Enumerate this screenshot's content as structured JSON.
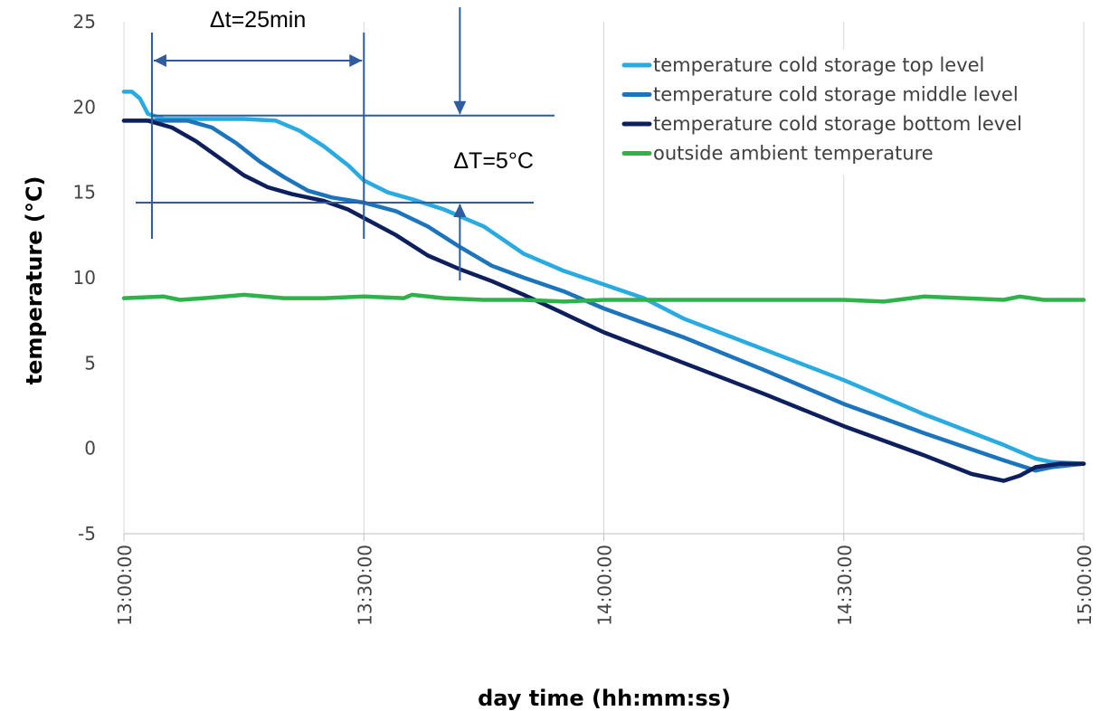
{
  "chart_data": {
    "type": "line",
    "title": "",
    "xlabel": "day time (hh:mm:ss)",
    "ylabel": "temperature (°C)",
    "xlim": [
      "13:00:00",
      "15:00:00"
    ],
    "ylim": [
      -5,
      25
    ],
    "x_ticks": [
      "13:00:00",
      "13:30:00",
      "14:00:00",
      "14:30:00",
      "15:00:00"
    ],
    "y_ticks": [
      -5,
      0,
      5,
      10,
      15,
      20,
      25
    ],
    "grid": "vertical",
    "legend_position": "top-right",
    "series": [
      {
        "name": "temperature cold storage top level",
        "color": "#29abe2",
        "points": [
          [
            "13:00:00",
            20.9
          ],
          [
            "13:01:00",
            20.9
          ],
          [
            "13:02:00",
            20.5
          ],
          [
            "13:03:00",
            19.6
          ],
          [
            "13:05:00",
            19.3
          ],
          [
            "13:10:00",
            19.3
          ],
          [
            "13:15:00",
            19.3
          ],
          [
            "13:19:00",
            19.2
          ],
          [
            "13:22:00",
            18.6
          ],
          [
            "13:25:00",
            17.7
          ],
          [
            "13:28:00",
            16.6
          ],
          [
            "13:30:00",
            15.7
          ],
          [
            "13:33:00",
            15.0
          ],
          [
            "13:36:00",
            14.6
          ],
          [
            "13:40:00",
            14.0
          ],
          [
            "13:45:00",
            13.0
          ],
          [
            "13:50:00",
            11.4
          ],
          [
            "13:55:00",
            10.4
          ],
          [
            "14:00:00",
            9.6
          ],
          [
            "14:05:00",
            8.8
          ],
          [
            "14:10:00",
            7.6
          ],
          [
            "14:20:00",
            5.8
          ],
          [
            "14:30:00",
            4.0
          ],
          [
            "14:40:00",
            2.0
          ],
          [
            "14:50:00",
            0.2
          ],
          [
            "14:54:00",
            -0.6
          ],
          [
            "14:56:00",
            -0.8
          ],
          [
            "15:00:00",
            -0.9
          ]
        ]
      },
      {
        "name": "temperature cold storage middle level",
        "color": "#1c75bc",
        "points": [
          [
            "13:00:00",
            19.2
          ],
          [
            "13:03:00",
            19.2
          ],
          [
            "13:05:00",
            19.2
          ],
          [
            "13:08:00",
            19.2
          ],
          [
            "13:11:00",
            18.8
          ],
          [
            "13:14:00",
            17.9
          ],
          [
            "13:17:00",
            16.8
          ],
          [
            "13:20:00",
            15.9
          ],
          [
            "13:23:00",
            15.1
          ],
          [
            "13:26:00",
            14.7
          ],
          [
            "13:30:00",
            14.4
          ],
          [
            "13:34:00",
            13.9
          ],
          [
            "13:38:00",
            13.0
          ],
          [
            "13:42:00",
            11.8
          ],
          [
            "13:46:00",
            10.7
          ],
          [
            "13:50:00",
            10.0
          ],
          [
            "13:55:00",
            9.2
          ],
          [
            "14:00:00",
            8.2
          ],
          [
            "14:10:00",
            6.5
          ],
          [
            "14:20:00",
            4.6
          ],
          [
            "14:30:00",
            2.6
          ],
          [
            "14:40:00",
            0.9
          ],
          [
            "14:50:00",
            -0.7
          ],
          [
            "14:54:00",
            -1.3
          ],
          [
            "14:56:00",
            -1.1
          ],
          [
            "15:00:00",
            -0.9
          ]
        ]
      },
      {
        "name": "temperature cold storage bottom level",
        "color": "#0d1f5c",
        "points": [
          [
            "13:00:00",
            19.2
          ],
          [
            "13:03:00",
            19.2
          ],
          [
            "13:06:00",
            18.8
          ],
          [
            "13:09:00",
            18.0
          ],
          [
            "13:12:00",
            17.0
          ],
          [
            "13:15:00",
            16.0
          ],
          [
            "13:18:00",
            15.3
          ],
          [
            "13:21:00",
            14.9
          ],
          [
            "13:25:00",
            14.5
          ],
          [
            "13:28:00",
            14.0
          ],
          [
            "13:30:00",
            13.5
          ],
          [
            "13:34:00",
            12.5
          ],
          [
            "13:38:00",
            11.3
          ],
          [
            "13:42:00",
            10.5
          ],
          [
            "13:46:00",
            9.8
          ],
          [
            "13:50:00",
            9.0
          ],
          [
            "13:55:00",
            7.9
          ],
          [
            "14:00:00",
            6.8
          ],
          [
            "14:10:00",
            5.0
          ],
          [
            "14:20:00",
            3.2
          ],
          [
            "14:30:00",
            1.3
          ],
          [
            "14:40:00",
            -0.4
          ],
          [
            "14:46:00",
            -1.5
          ],
          [
            "14:50:00",
            -1.9
          ],
          [
            "14:52:00",
            -1.6
          ],
          [
            "14:54:00",
            -1.1
          ],
          [
            "14:57:00",
            -0.9
          ],
          [
            "15:00:00",
            -0.9
          ]
        ]
      },
      {
        "name": "outside ambient temperature",
        "color": "#2db34a",
        "points": [
          [
            "13:00:00",
            8.8
          ],
          [
            "13:05:00",
            8.9
          ],
          [
            "13:07:00",
            8.7
          ],
          [
            "13:10:00",
            8.8
          ],
          [
            "13:15:00",
            9.0
          ],
          [
            "13:20:00",
            8.8
          ],
          [
            "13:25:00",
            8.8
          ],
          [
            "13:30:00",
            8.9
          ],
          [
            "13:35:00",
            8.8
          ],
          [
            "13:36:00",
            9.0
          ],
          [
            "13:40:00",
            8.8
          ],
          [
            "13:45:00",
            8.7
          ],
          [
            "13:50:00",
            8.7
          ],
          [
            "13:55:00",
            8.6
          ],
          [
            "14:00:00",
            8.7
          ],
          [
            "14:10:00",
            8.7
          ],
          [
            "14:20:00",
            8.7
          ],
          [
            "14:30:00",
            8.7
          ],
          [
            "14:35:00",
            8.6
          ],
          [
            "14:40:00",
            8.9
          ],
          [
            "14:45:00",
            8.8
          ],
          [
            "14:50:00",
            8.7
          ],
          [
            "14:52:00",
            8.9
          ],
          [
            "14:55:00",
            8.7
          ],
          [
            "15:00:00",
            8.7
          ]
        ]
      }
    ],
    "annotations": {
      "dt_label": "Δt=25min",
      "dT_label": "ΔT=5°C",
      "dt_start": "13:03:30",
      "dt_end": "13:30:00",
      "dT_time": "13:42:00",
      "dT_upper": 19.5,
      "dT_lower": 14.4,
      "guide_color": "#2e5c9e"
    }
  }
}
